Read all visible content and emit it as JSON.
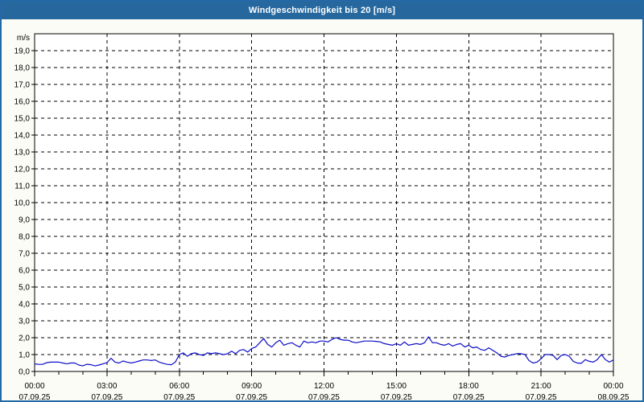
{
  "window": {
    "title": "Windgeschwindigkeit bis 20 [m/s]"
  },
  "colors": {
    "titlebar_bg": "#26689E",
    "titlebar_text": "#FFFFFF",
    "page_border": "#2468A6",
    "page_bg": "#FBFCF5",
    "plot_bg": "#FFFFFF",
    "plot_border": "#000000",
    "grid": "#000000",
    "tick": "#000000",
    "label_text": "#000000",
    "line": "#0D0DC8"
  },
  "chart_data": {
    "type": "line",
    "title": "Windgeschwindigkeit bis 20 [m/s]",
    "y_unit": "m/s",
    "ylim": [
      0,
      20
    ],
    "ytick_step": 1.0,
    "ytick_labels": [
      "0,0",
      "1,0",
      "2,0",
      "3,0",
      "4,0",
      "5,0",
      "6,0",
      "7,0",
      "8,0",
      "9,0",
      "10,0",
      "11,0",
      "12,0",
      "13,0",
      "14,0",
      "15,0",
      "16,0",
      "17,0",
      "18,0",
      "19,0"
    ],
    "grid": "dashed",
    "xlim_minutes": [
      0,
      1440
    ],
    "x_minor_tick_minutes": 60,
    "x_major_ticks": [
      {
        "minutes": 0,
        "time": "00:00",
        "date": "07.09.25"
      },
      {
        "minutes": 180,
        "time": "03:00",
        "date": "07.09.25"
      },
      {
        "minutes": 360,
        "time": "06:00",
        "date": "07.09.25"
      },
      {
        "minutes": 540,
        "time": "09:00",
        "date": "07.09.25"
      },
      {
        "minutes": 720,
        "time": "12:00",
        "date": "07.09.25"
      },
      {
        "minutes": 900,
        "time": "15:00",
        "date": "07.09.25"
      },
      {
        "minutes": 1080,
        "time": "18:00",
        "date": "07.09.25"
      },
      {
        "minutes": 1260,
        "time": "21:00",
        "date": "07.09.25"
      },
      {
        "minutes": 1440,
        "time": "00:00",
        "date": "08.09.25"
      }
    ],
    "series": [
      {
        "name": "Windgeschwindigkeit",
        "color": "#0D0DC8",
        "start_minutes": 0,
        "step_minutes": 10,
        "values": [
          0.45,
          0.42,
          0.42,
          0.52,
          0.55,
          0.55,
          0.55,
          0.5,
          0.45,
          0.5,
          0.5,
          0.38,
          0.33,
          0.43,
          0.4,
          0.33,
          0.38,
          0.45,
          0.52,
          0.78,
          0.55,
          0.5,
          0.62,
          0.55,
          0.5,
          0.55,
          0.62,
          0.68,
          0.68,
          0.65,
          0.68,
          0.55,
          0.48,
          0.42,
          0.4,
          0.55,
          1.0,
          1.1,
          0.9,
          1.05,
          1.1,
          1.0,
          0.95,
          1.1,
          1.05,
          1.1,
          1.05,
          1.0,
          1.05,
          1.2,
          1.05,
          1.25,
          1.3,
          1.15,
          1.35,
          1.45,
          1.7,
          1.95,
          1.6,
          1.45,
          1.7,
          1.85,
          1.55,
          1.65,
          1.7,
          1.55,
          1.45,
          1.8,
          1.7,
          1.75,
          1.7,
          1.8,
          1.8,
          1.75,
          1.9,
          2.0,
          1.9,
          1.85,
          1.85,
          1.75,
          1.7,
          1.75,
          1.8,
          1.8,
          1.8,
          1.78,
          1.75,
          1.65,
          1.6,
          1.55,
          1.65,
          1.55,
          1.75,
          1.55,
          1.6,
          1.65,
          1.6,
          1.7,
          2.05,
          1.7,
          1.7,
          1.6,
          1.55,
          1.65,
          1.5,
          1.6,
          1.65,
          1.45,
          1.55,
          1.4,
          1.45,
          1.3,
          1.25,
          1.4,
          1.25,
          1.1,
          0.9,
          0.85,
          0.95,
          1.0,
          1.05,
          1.05,
          1.0,
          0.65,
          0.5,
          0.55,
          0.75,
          1.0,
          1.0,
          0.95,
          0.7,
          0.95,
          1.0,
          0.9,
          0.6,
          0.5,
          0.48,
          0.7,
          0.6,
          0.55,
          0.7,
          1.0,
          0.7,
          0.55,
          0.68
        ]
      }
    ]
  }
}
